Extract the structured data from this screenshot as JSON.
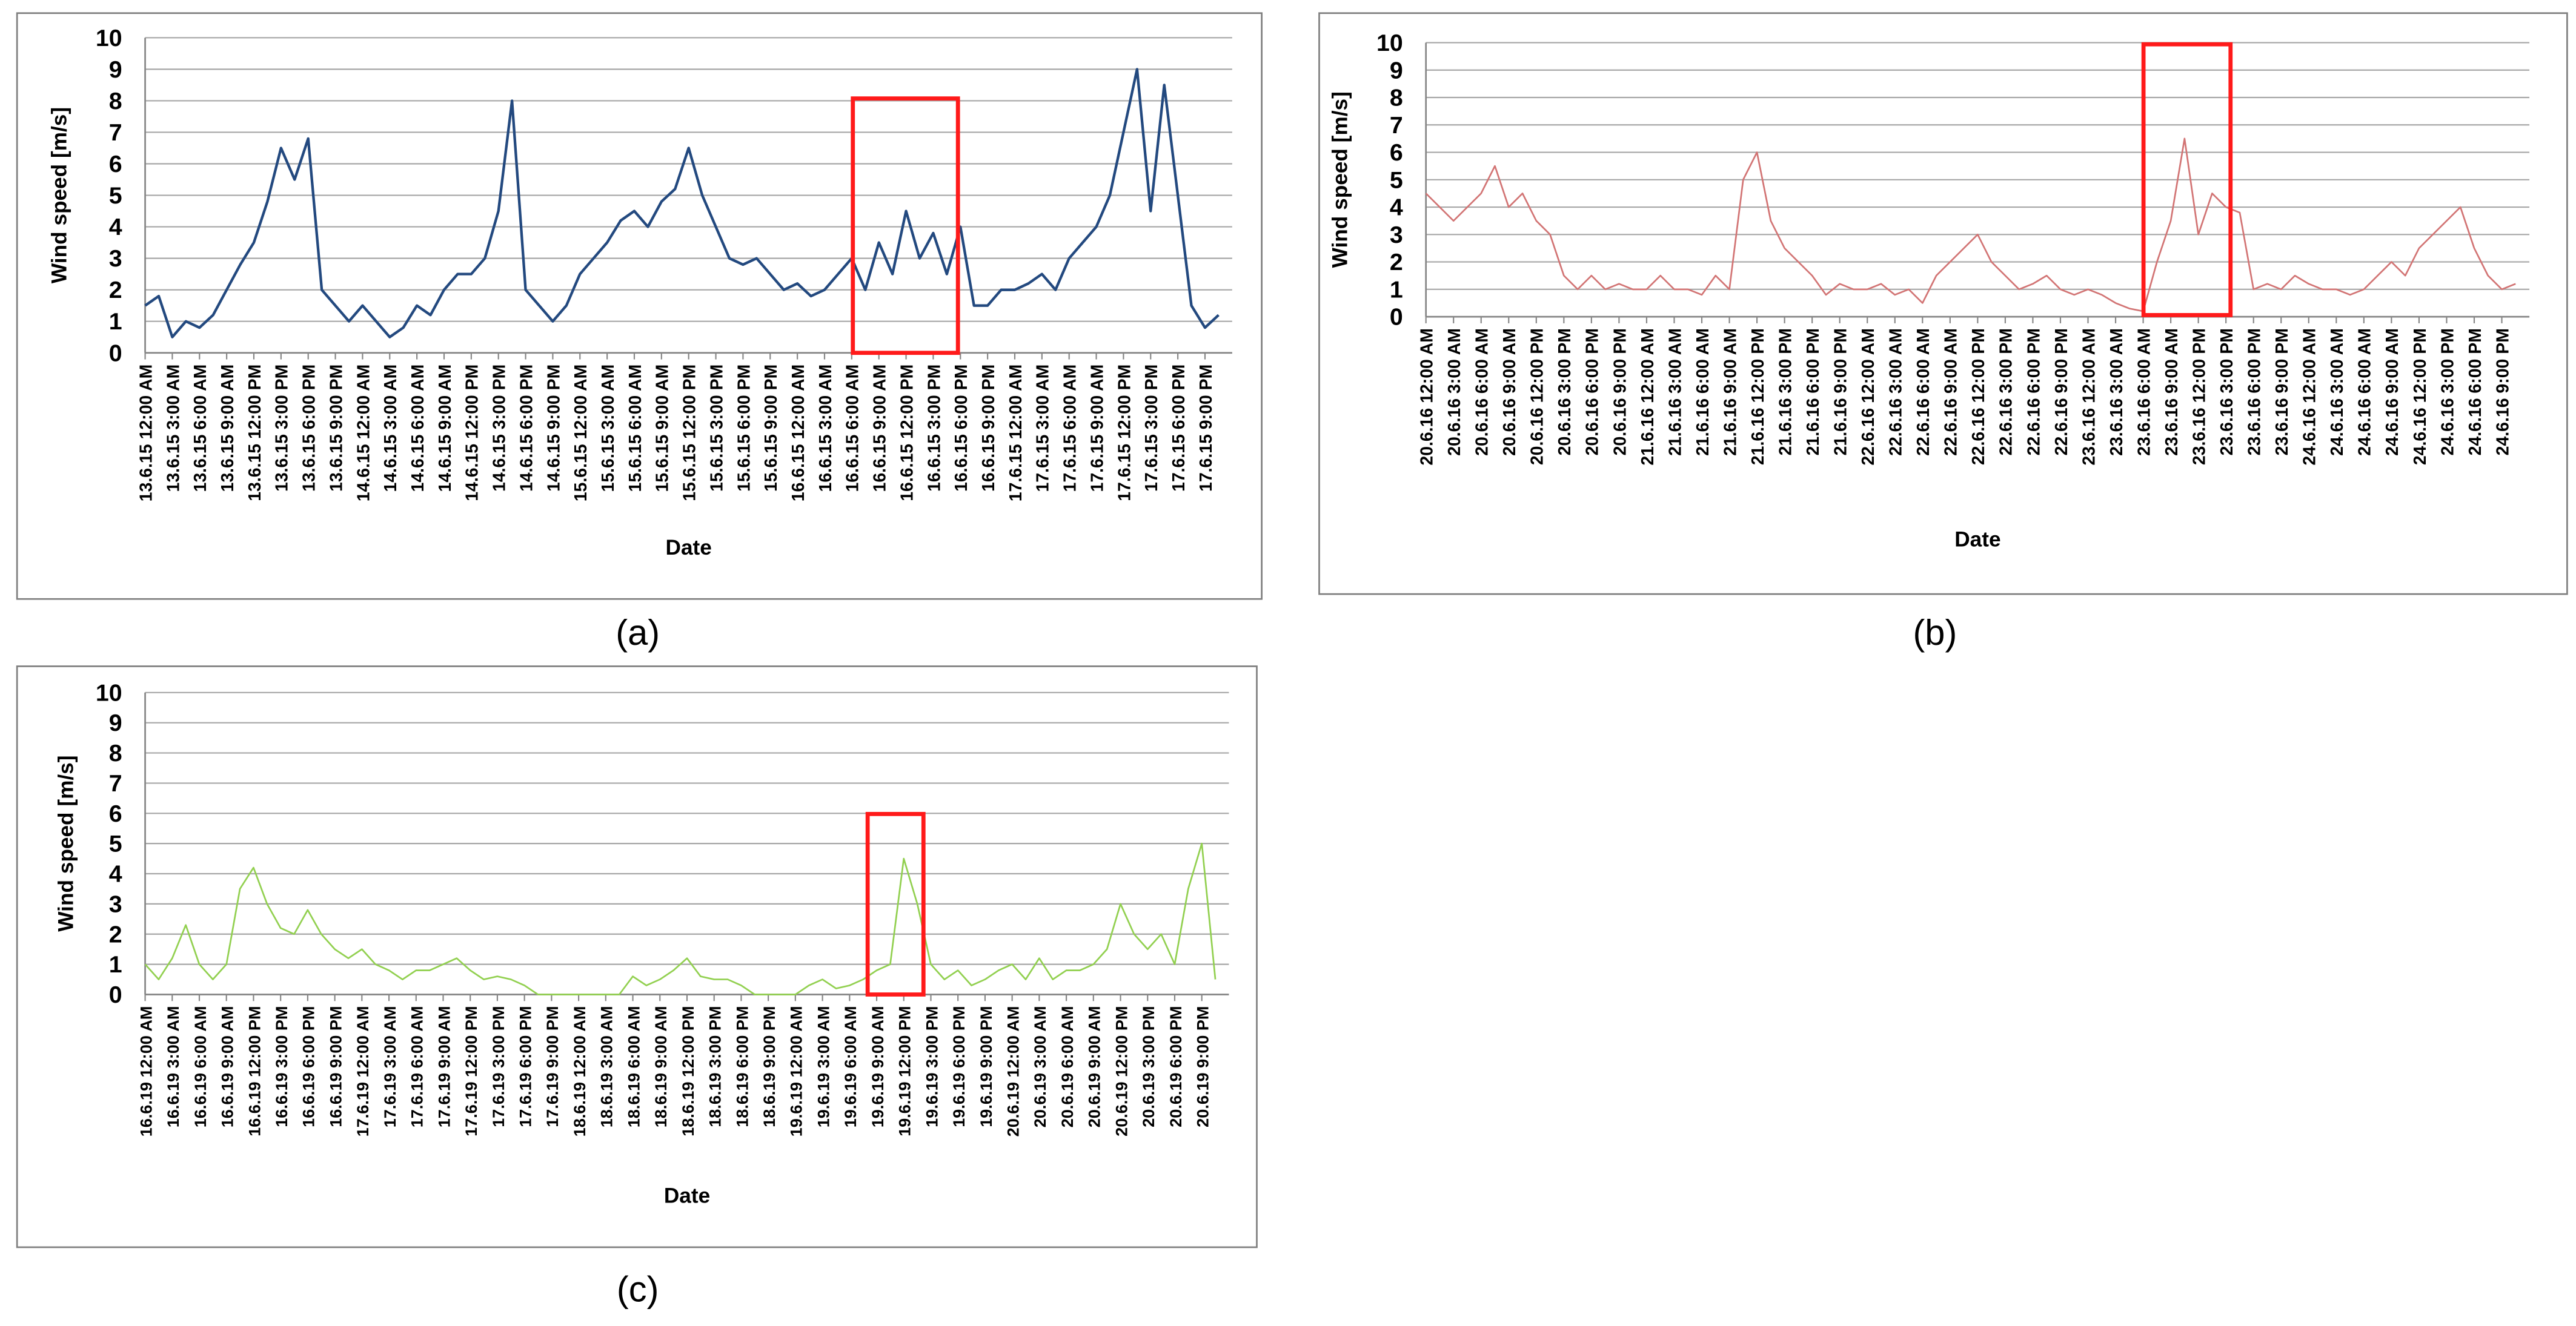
{
  "chart_data": [
    {
      "type": "line",
      "panel_label": "(a)",
      "y_label": "Wind speed [m/s]",
      "x_label": "Date",
      "color": "#23497f",
      "ylim": [
        0,
        10
      ],
      "yticks": [
        0,
        1,
        2,
        3,
        4,
        5,
        6,
        7,
        8,
        9,
        10
      ],
      "grid": true,
      "categories": [
        "13.6.15 12:00 AM",
        null,
        "13.6.15 3:00 AM",
        null,
        "13.6.15 6:00 AM",
        null,
        "13.6.15 9:00 AM",
        null,
        "13.6.15 12:00 PM",
        null,
        "13.6.15 3:00 PM",
        null,
        "13.6.15 6:00 PM",
        null,
        "13.6.15 9:00 PM",
        null,
        "14.6.15 12:00 AM",
        null,
        "14.6.15 3:00 AM",
        null,
        "14.6.15 6:00 AM",
        null,
        "14.6.15 9:00 AM",
        null,
        "14.6.15 12:00 PM",
        null,
        "14.6.15 3:00 PM",
        null,
        "14.6.15 6:00 PM",
        null,
        "14.6.15 9:00 PM",
        null,
        "15.6.15 12:00 AM",
        null,
        "15.6.15 3:00 AM",
        null,
        "15.6.15 6:00 AM",
        null,
        "15.6.15 9:00 AM",
        null,
        "15.6.15 12:00 PM",
        null,
        "15.6.15 3:00 PM",
        null,
        "15.6.15 6:00 PM",
        null,
        "15.6.15 9:00 PM",
        null,
        "16.6.15 12:00 AM",
        null,
        "16.6.15 3:00 AM",
        null,
        "16.6.15 6:00 AM",
        null,
        "16.6.15 9:00 AM",
        null,
        "16.6.15 12:00 PM",
        null,
        "16.6.15 3:00 PM",
        null,
        "16.6.15 6:00 PM",
        null,
        "16.6.15 9:00 PM",
        null,
        "17.6.15 12:00 AM",
        null,
        "17.6.15 3:00 AM",
        null,
        "17.6.15 6:00 AM",
        null,
        "17.6.15 9:00 AM",
        null,
        "17.6.15 12:00 PM",
        null,
        "17.6.15 3:00 PM",
        null,
        "17.6.15 6:00 PM",
        null,
        "17.6.15 9:00 PM",
        null
      ],
      "values": [
        1.5,
        1.8,
        0.5,
        1.0,
        0.8,
        1.2,
        2.0,
        2.8,
        3.5,
        4.8,
        6.5,
        5.5,
        6.8,
        2.0,
        1.5,
        1.0,
        1.5,
        1.0,
        0.5,
        0.8,
        1.5,
        1.2,
        2.0,
        2.5,
        2.5,
        3.0,
        4.5,
        8.0,
        2.0,
        1.5,
        1.0,
        1.5,
        2.5,
        3.0,
        3.5,
        4.2,
        4.5,
        4.0,
        4.8,
        5.2,
        6.5,
        5.0,
        4.0,
        3.0,
        2.8,
        3.0,
        2.5,
        2.0,
        2.2,
        1.8,
        2.0,
        2.5,
        3.0,
        2.0,
        3.5,
        2.5,
        4.5,
        3.0,
        3.8,
        2.5,
        4.0,
        1.5,
        1.5,
        2.0,
        2.0,
        2.2,
        2.5,
        2.0,
        3.0,
        3.5,
        4.0,
        5.0,
        7.0,
        9.0,
        4.5,
        8.5,
        5.0,
        1.5,
        0.8,
        1.2
      ]
    },
    {
      "type": "line",
      "panel_label": "(b)",
      "y_label": "Wind speed [m/s]",
      "x_label": "Date",
      "color": "#d27474",
      "ylim": [
        0,
        10
      ],
      "yticks": [
        0,
        1,
        2,
        3,
        4,
        5,
        6,
        7,
        8,
        9,
        10
      ],
      "grid": true,
      "categories": [
        "20.6.16 12:00 AM",
        null,
        "20.6.16 3:00 AM",
        null,
        "20.6.16 6:00 AM",
        null,
        "20.6.16 9:00 AM",
        null,
        "20.6.16 12:00 PM",
        null,
        "20.6.16 3:00 PM",
        null,
        "20.6.16 6:00 PM",
        null,
        "20.6.16 9:00 PM",
        null,
        "21.6.16 12:00 AM",
        null,
        "21.6.16 3:00 AM",
        null,
        "21.6.16 6:00 AM",
        null,
        "21.6.16 9:00 AM",
        null,
        "21.6.16 12:00 PM",
        null,
        "21.6.16 3:00 PM",
        null,
        "21.6.16 6:00 PM",
        null,
        "21.6.16 9:00 PM",
        null,
        "22.6.16 12:00 AM",
        null,
        "22.6.16 3:00 AM",
        null,
        "22.6.16 6:00 AM",
        null,
        "22.6.16 9:00 AM",
        null,
        "22.6.16 12:00 PM",
        null,
        "22.6.16 3:00 PM",
        null,
        "22.6.16 6:00 PM",
        null,
        "22.6.16 9:00 PM",
        null,
        "23.6.16 12:00 AM",
        null,
        "23.6.16 3:00 AM",
        null,
        "23.6.16 6:00 AM",
        null,
        "23.6.16 9:00 AM",
        null,
        "23.6.16 12:00 PM",
        null,
        "23.6.16 3:00 PM",
        null,
        "23.6.16 6:00 PM",
        null,
        "23.6.16 9:00 PM",
        null,
        "24.6.16 12:00 AM",
        null,
        "24.6.16 3:00 AM",
        null,
        "24.6.16 6:00 AM",
        null,
        "24.6.16 9:00 AM",
        null,
        "24.6.16 12:00 PM",
        null,
        "24.6.16 3:00 PM",
        null,
        "24.6.16 6:00 PM",
        null,
        "24.6.16 9:00 PM",
        null
      ],
      "values": [
        4.5,
        4.0,
        3.5,
        4.0,
        4.5,
        5.5,
        4.0,
        4.5,
        3.5,
        3.0,
        1.5,
        1.0,
        1.5,
        1.0,
        1.2,
        1.0,
        1.0,
        1.5,
        1.0,
        1.0,
        0.8,
        1.5,
        1.0,
        5.0,
        6.0,
        3.5,
        2.5,
        2.0,
        1.5,
        0.8,
        1.2,
        1.0,
        1.0,
        1.2,
        0.8,
        1.0,
        0.5,
        1.5,
        2.0,
        2.5,
        3.0,
        2.0,
        1.5,
        1.0,
        1.2,
        1.5,
        1.0,
        0.8,
        1.0,
        0.8,
        0.5,
        0.3,
        0.2,
        2.0,
        3.5,
        6.5,
        3.0,
        4.5,
        4.0,
        3.8,
        1.0,
        1.2,
        1.0,
        1.5,
        1.2,
        1.0,
        1.0,
        0.8,
        1.0,
        1.5,
        2.0,
        1.5,
        2.5,
        3.0,
        3.5,
        4.0,
        2.5,
        1.5,
        1.0,
        1.2
      ]
    },
    {
      "type": "line",
      "panel_label": "(c)",
      "y_label": "Wind speed [m/s]",
      "x_label": "Date",
      "color": "#92d050",
      "ylim": [
        0,
        10
      ],
      "yticks": [
        0,
        1,
        2,
        3,
        4,
        5,
        6,
        7,
        8,
        9,
        10
      ],
      "grid": true,
      "categories": [
        "16.6.19 12:00 AM",
        null,
        "16.6.19 3:00 AM",
        null,
        "16.6.19 6:00 AM",
        null,
        "16.6.19 9:00 AM",
        null,
        "16.6.19 12:00 PM",
        null,
        "16.6.19 3:00 PM",
        null,
        "16.6.19 6:00 PM",
        null,
        "16.6.19 9:00 PM",
        null,
        "17.6.19 12:00 AM",
        null,
        "17.6.19 3:00 AM",
        null,
        "17.6.19 6:00 AM",
        null,
        "17.6.19 9:00 AM",
        null,
        "17.6.19 12:00 PM",
        null,
        "17.6.19 3:00 PM",
        null,
        "17.6.19 6:00 PM",
        null,
        "17.6.19 9:00 PM",
        null,
        "18.6.19 12:00 AM",
        null,
        "18.6.19 3:00 AM",
        null,
        "18.6.19 6:00 AM",
        null,
        "18.6.19 9:00 AM",
        null,
        "18.6.19 12:00 PM",
        null,
        "18.6.19 3:00 PM",
        null,
        "18.6.19 6:00 PM",
        null,
        "18.6.19 9:00 PM",
        null,
        "19.6.19 12:00 AM",
        null,
        "19.6.19 3:00 AM",
        null,
        "19.6.19 6:00 AM",
        null,
        "19.6.19 9:00 AM",
        null,
        "19.6.19 12:00 PM",
        null,
        "19.6.19 3:00 PM",
        null,
        "19.6.19 6:00 PM",
        null,
        "19.6.19 9:00 PM",
        null,
        "20.6.19 12:00 AM",
        null,
        "20.6.19 3:00 AM",
        null,
        "20.6.19 6:00 AM",
        null,
        "20.6.19 9:00 AM",
        null,
        "20.6.19 12:00 PM",
        null,
        "20.6.19 3:00 PM",
        null,
        "20.6.19 6:00 PM",
        null,
        "20.6.19 9:00 PM",
        null
      ],
      "values": [
        1.0,
        0.5,
        1.2,
        2.3,
        1.0,
        0.5,
        1.0,
        3.5,
        4.2,
        3.0,
        2.2,
        2.0,
        2.8,
        2.0,
        1.5,
        1.2,
        1.5,
        1.0,
        0.8,
        0.5,
        0.8,
        0.8,
        1.0,
        1.2,
        0.8,
        0.5,
        0.6,
        0.5,
        0.3,
        0,
        0,
        0,
        0,
        0,
        0,
        0,
        0.6,
        0.3,
        0.5,
        0.8,
        1.2,
        0.6,
        0.5,
        0.5,
        0.3,
        0,
        0,
        0,
        0,
        0.3,
        0.5,
        0.2,
        0.3,
        0.5,
        0.8,
        1.0,
        4.5,
        3.0,
        1.0,
        0.5,
        0.8,
        0.3,
        0.5,
        0.8,
        1.0,
        0.5,
        1.2,
        0.5,
        0.8,
        0.8,
        1.0,
        1.5,
        3.0,
        2.0,
        1.5,
        2.0,
        1.0,
        3.5,
        5.0,
        0.5
      ]
    }
  ]
}
